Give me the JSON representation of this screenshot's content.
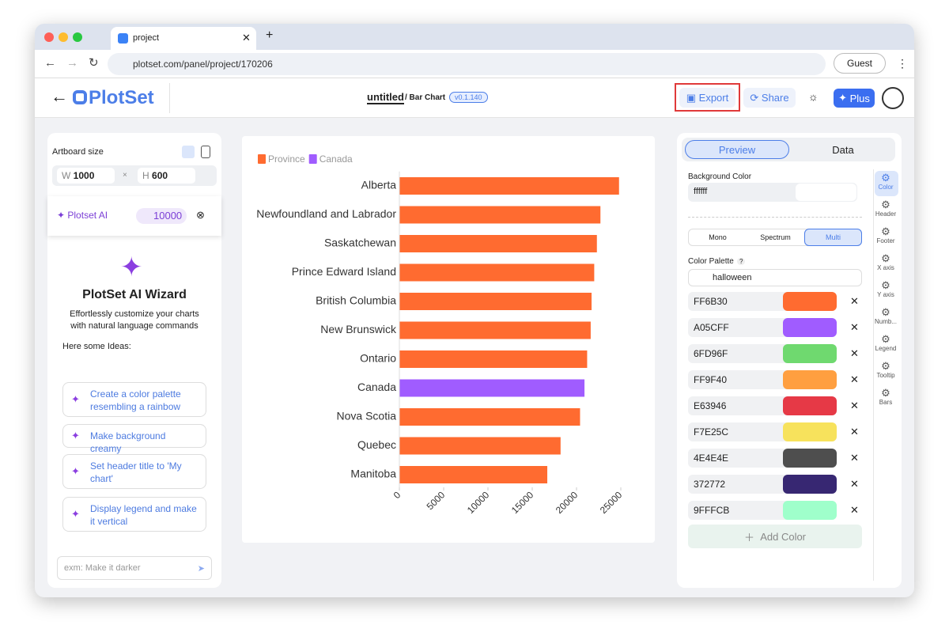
{
  "browser": {
    "tab_title": "project",
    "url": "plotset.com/panel/project/170206",
    "profile": "Guest"
  },
  "header": {
    "logo": "PlotSet",
    "doc_title": "untitled",
    "chart_kind": "/ Bar Chart",
    "version": "v0.1.140",
    "export": "Export",
    "share": "Share",
    "plus": "Plus"
  },
  "left_panel": {
    "artboard_label": "Artboard size",
    "width_label": "W",
    "width": "1000",
    "times": "×",
    "height_label": "H",
    "height": "600",
    "ai_label": "Plotset AI",
    "credits": "10000",
    "wizard_title": "PlotSet AI Wizard",
    "wizard_description": "Effortlessly customize your charts with natural language commands",
    "ideas_label": "Here some Ideas:",
    "ideas": [
      "Create a color palette resembling a rainbow",
      "Make background creamy",
      "Set header title to 'My chart'",
      "Display legend and make it vertical"
    ],
    "input_placeholder": "exm: Make it darker"
  },
  "chart_data": {
    "type": "bar",
    "orientation": "horizontal",
    "categories": [
      "Alberta",
      "Newfoundland and Labrador",
      "Saskatchewan",
      "Prince Edward Island",
      "British Columbia",
      "New Brunswick",
      "Ontario",
      "Canada",
      "Nova Scotia",
      "Quebec",
      "Manitoba"
    ],
    "series": [
      {
        "name": "Province",
        "color": "#FF6B30",
        "values": [
          24800,
          22700,
          22300,
          22000,
          21700,
          21600,
          21200,
          null,
          20400,
          18200,
          16700
        ]
      },
      {
        "name": "Canada",
        "color": "#A05CFF",
        "values": [
          null,
          null,
          null,
          null,
          null,
          null,
          null,
          20900,
          null,
          null,
          null
        ]
      }
    ],
    "xlim": [
      0,
      28000
    ],
    "xticks": [
      0,
      5000,
      10000,
      15000,
      20000,
      25000
    ],
    "grid": false,
    "legend": "top-left"
  },
  "right_panel": {
    "tabs": [
      "Preview",
      "Data"
    ],
    "background_label": "Background Color",
    "background_value": "ffffff",
    "modes": [
      "Mono",
      "Spectrum",
      "Multi"
    ],
    "palette_label": "Color Palette",
    "help": "?",
    "palette_name": "halloween",
    "palette_colors": [
      "FF6B30",
      "A05CFF",
      "6FD96F",
      "FF9F40",
      "E63946",
      "F7E25C",
      "4E4E4E",
      "372772",
      "9FFFCB"
    ],
    "add_color": "Add Color",
    "side_tools": [
      "Color",
      "Header",
      "Footer",
      "X axis",
      "Y axis",
      "Numb...",
      "Legend",
      "Tooltip",
      "Bars"
    ]
  }
}
